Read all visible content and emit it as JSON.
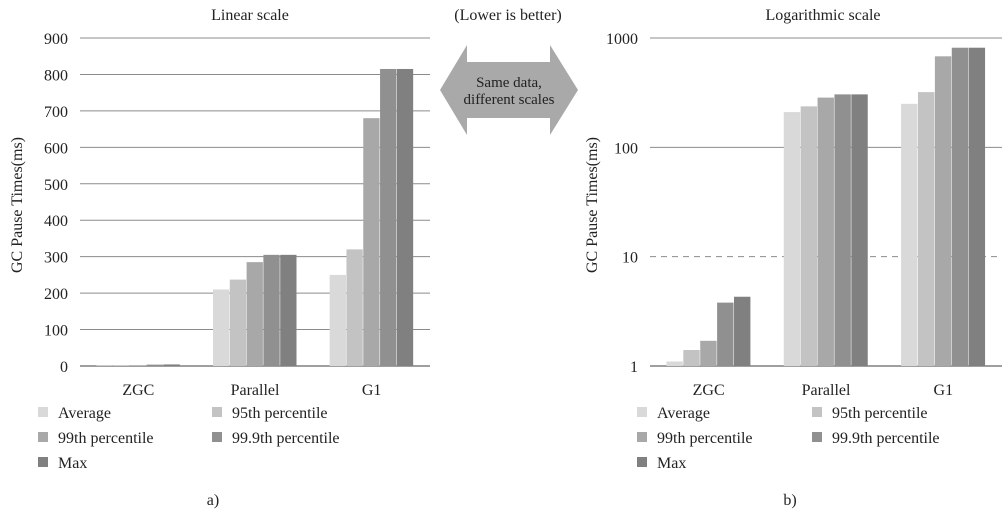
{
  "center_note": {
    "caption": "(Lower is better)",
    "arrow_line1": "Same data,",
    "arrow_line2": "different scales"
  },
  "palette": [
    "#d9d9d9",
    "#c3c3c3",
    "#a8a8a8",
    "#909090",
    "#808080"
  ],
  "chart_data": [
    {
      "type": "bar",
      "title": "Linear scale",
      "panel_label": "a)",
      "ylabel": "GC Pause Times(ms)",
      "scale": "linear",
      "ylim": [
        0,
        900
      ],
      "yticks": [
        "0",
        "100",
        "200",
        "300",
        "400",
        "500",
        "600",
        "700",
        "800",
        "900"
      ],
      "categories": [
        "ZGC",
        "Parallel",
        "G1"
      ],
      "series": [
        {
          "name": "Average",
          "values": [
            1.1,
            210,
            250
          ]
        },
        {
          "name": "95th percentile",
          "values": [
            1.4,
            237,
            320
          ]
        },
        {
          "name": "99th percentile",
          "values": [
            1.7,
            285,
            680
          ]
        },
        {
          "name": "99.9th percentile",
          "values": [
            3.8,
            305,
            815
          ]
        },
        {
          "name": "Max",
          "values": [
            4.3,
            305,
            815
          ]
        }
      ],
      "grid": "horizontal",
      "legend": "bottom"
    },
    {
      "type": "bar",
      "title": "Logarithmic scale",
      "panel_label": "b)",
      "ylabel": "GC Pause Times(ms)",
      "scale": "log",
      "ylim": [
        1,
        1000
      ],
      "yticks": [
        "1",
        "10",
        "100",
        "1000"
      ],
      "categories": [
        "ZGC",
        "Parallel",
        "G1"
      ],
      "series": [
        {
          "name": "Average",
          "values": [
            1.1,
            210,
            250
          ]
        },
        {
          "name": "95th percentile",
          "values": [
            1.4,
            237,
            320
          ]
        },
        {
          "name": "99th percentile",
          "values": [
            1.7,
            285,
            680
          ]
        },
        {
          "name": "99.9th percentile",
          "values": [
            3.8,
            305,
            815
          ]
        },
        {
          "name": "Max",
          "values": [
            4.3,
            305,
            815
          ]
        }
      ],
      "grid": "horizontal",
      "legend": "bottom"
    }
  ]
}
